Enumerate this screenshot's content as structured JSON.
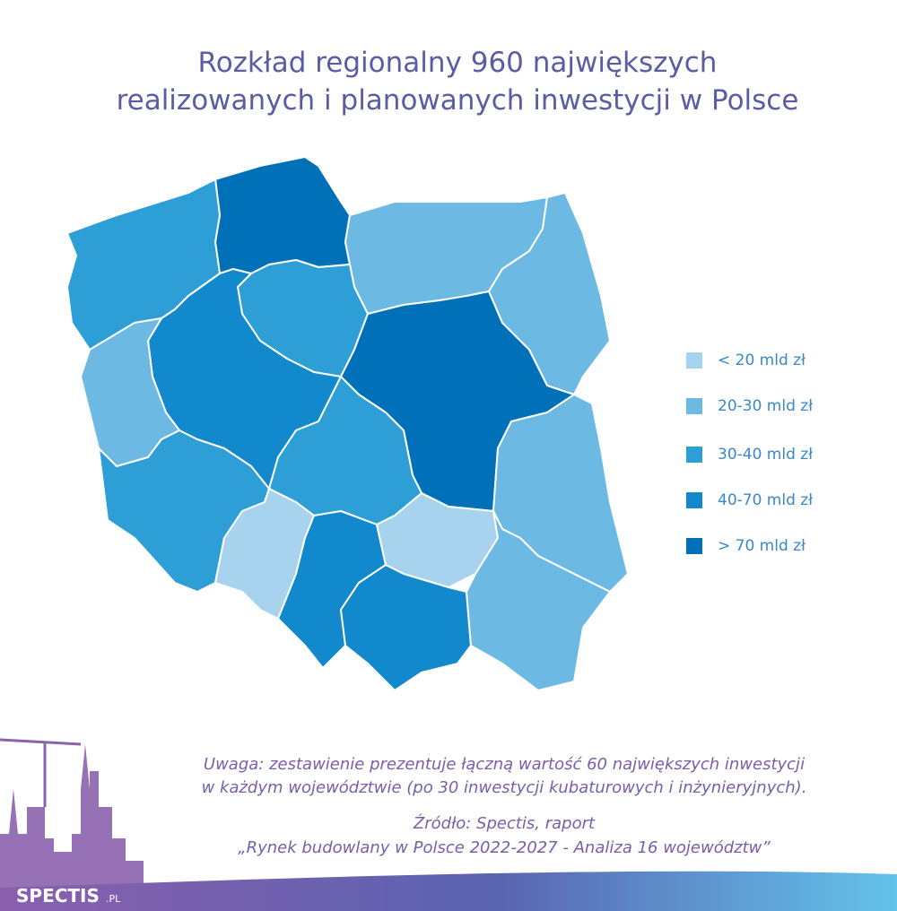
{
  "header": {
    "title": [
      "Rozkład regionalny 960 największych",
      "realizowanych i planowanych inwestycji w Polsce"
    ]
  },
  "legend": {
    "items": [
      {
        "label": "< 20 mld zł",
        "color": "#a8d3ee"
      },
      {
        "label": "20-30 mld zł",
        "color": "#6cb9e4"
      },
      {
        "label": "30-40 mld zł",
        "color": "#2e9fd6"
      },
      {
        "label": "40-70 mld zł",
        "color": "#1189cc"
      },
      {
        "label": "> 70 mld zł",
        "color": "#0070b8"
      }
    ]
  },
  "note": [
    "Uwaga: zestawienie prezentuje łączną wartość 60 największych inwestycji",
    "w każdym województwie (po 30 inwestycji kubaturowych i inżynieryjnych)."
  ],
  "source": [
    "Źródło: Spectis, raport",
    "„Rynek budowlany w Polsce 2022-2027 - Analiza 16 województw”"
  ],
  "logo": {
    "name": "SPECTIS",
    "suffix": ".PL"
  }
}
